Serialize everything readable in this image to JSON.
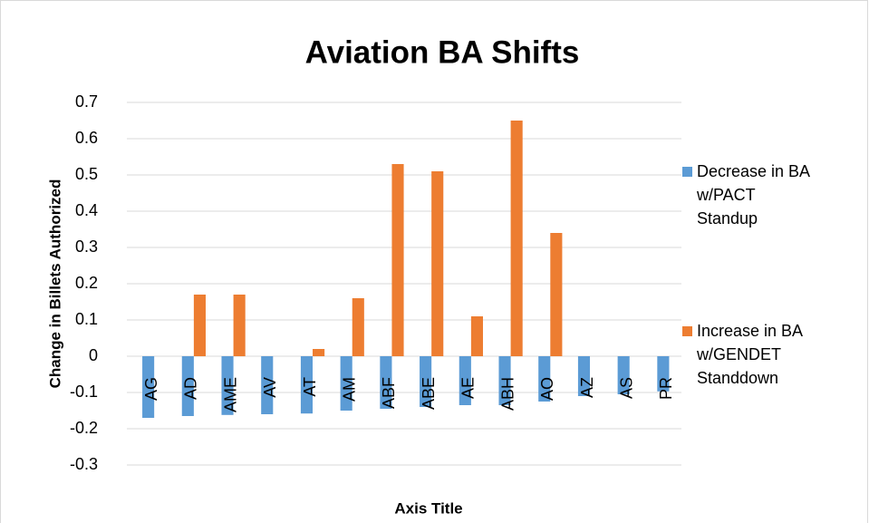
{
  "chart_data": {
    "type": "bar",
    "title": "Aviation BA Shifts",
    "x_label": "Axis Title",
    "y_label": "Change in Billets Authorized",
    "categories": [
      "AG",
      "AD",
      "AME",
      "AV",
      "AT",
      "AM",
      "ABF",
      "ABE",
      "AE",
      "ABH",
      "AO",
      "AZ",
      "AS",
      "PR"
    ],
    "series": [
      {
        "name": "Decrease in BA w/PACT Standup",
        "color": "#5b9bd5",
        "values": [
          -0.17,
          -0.165,
          -0.162,
          -0.16,
          -0.158,
          -0.15,
          -0.145,
          -0.14,
          -0.135,
          -0.135,
          -0.125,
          -0.11,
          -0.105,
          -0.097
        ]
      },
      {
        "name": "Increase in BA w/GENDET Standdown",
        "color": "#ed7d31",
        "values": [
          null,
          0.17,
          0.17,
          null,
          0.02,
          0.16,
          0.53,
          0.51,
          0.11,
          0.65,
          0.34,
          null,
          null,
          null
        ]
      }
    ],
    "ylim": [
      -0.3,
      0.7
    ],
    "yticks": [
      -0.3,
      -0.2,
      -0.1,
      0,
      0.1,
      0.2,
      0.3,
      0.4,
      0.5,
      0.6,
      0.7
    ],
    "grid": true,
    "legend": "right"
  }
}
